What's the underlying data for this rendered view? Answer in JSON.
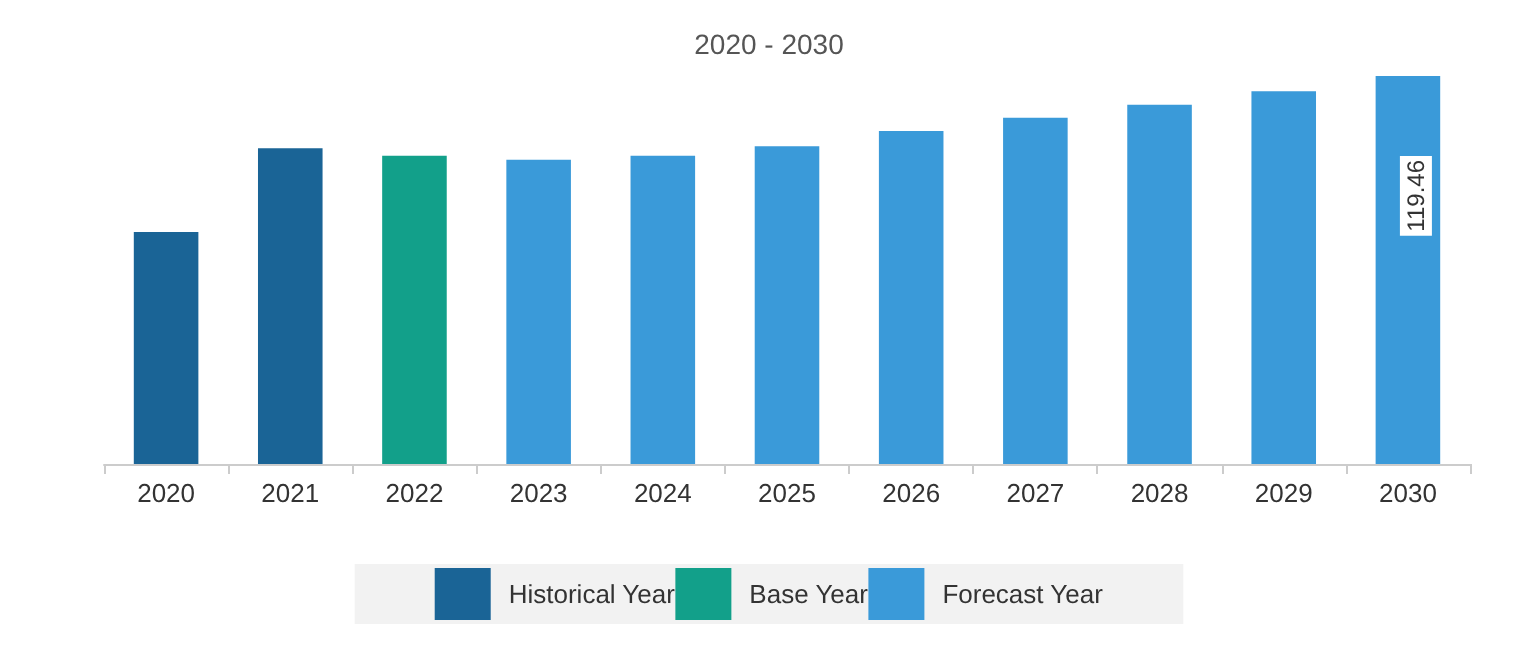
{
  "chart_data": {
    "type": "bar",
    "title": "2020 - 2030",
    "stacked": true,
    "categories": [
      "2020",
      "2021",
      "2022",
      "2023",
      "2024",
      "2025",
      "2026",
      "2027",
      "2028",
      "2029",
      "2030"
    ],
    "series": [
      {
        "name": "Historical Year",
        "color": "#1a6496",
        "values": [
          71.4,
          97.2,
          null,
          null,
          null,
          null,
          null,
          null,
          null,
          null,
          null
        ]
      },
      {
        "name": "Base Year",
        "color": "#12a08a",
        "values": [
          null,
          null,
          94.9,
          null,
          null,
          null,
          null,
          null,
          null,
          null,
          null
        ]
      },
      {
        "name": "Forecast Year",
        "color": "#3a9ad9",
        "values": [
          null,
          null,
          null,
          93.7,
          94.9,
          97.8,
          102.5,
          106.6,
          110.6,
          114.8,
          119.46
        ],
        "value_labels": [
          null,
          null,
          null,
          null,
          null,
          null,
          null,
          null,
          null,
          null,
          "119.46"
        ]
      }
    ],
    "legend": "bottom"
  }
}
